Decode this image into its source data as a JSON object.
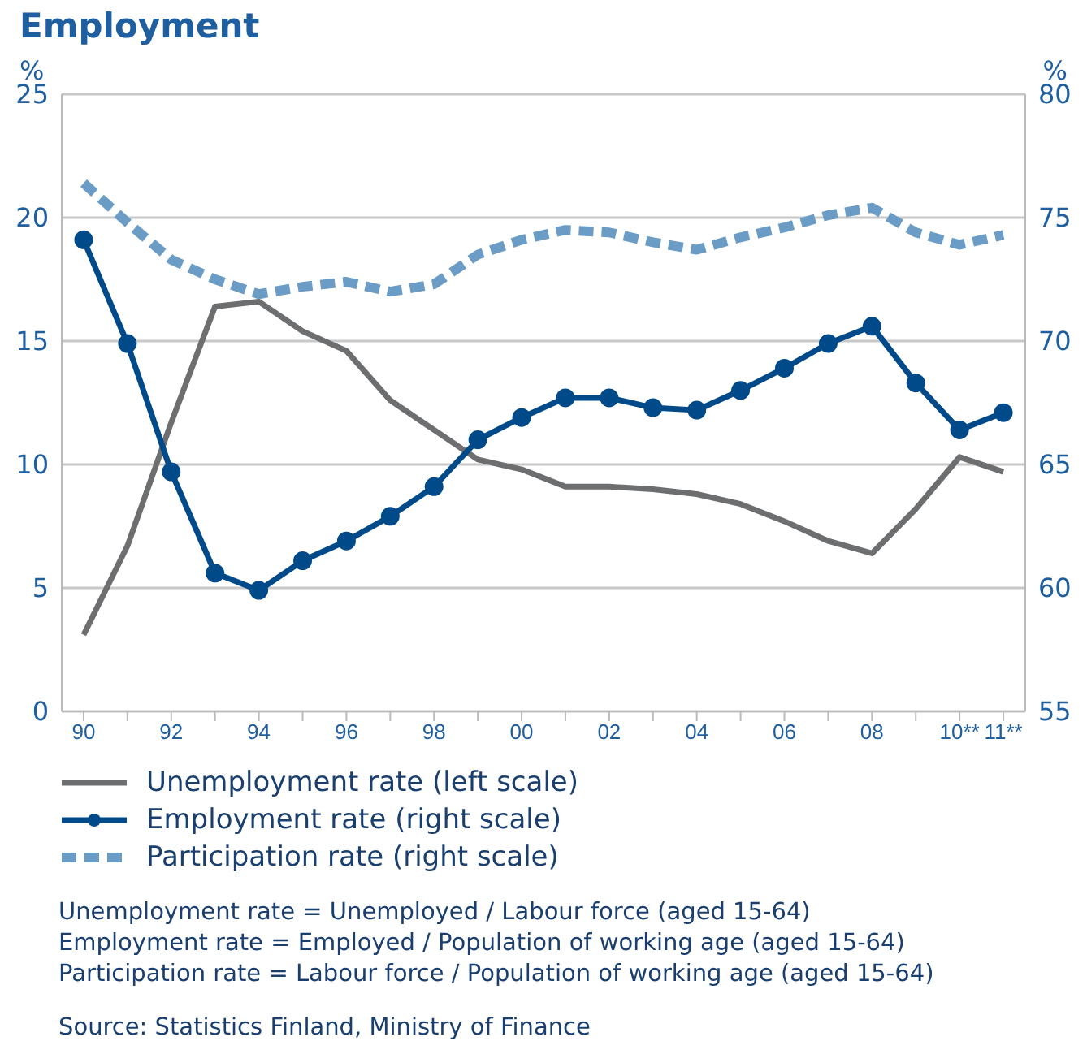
{
  "chart_data": {
    "type": "line",
    "title": "Employment",
    "ylabel": "%",
    "y2label": "%",
    "categories": [
      "90",
      null,
      "92",
      null,
      "94",
      null,
      "96",
      null,
      "98",
      null,
      "00",
      null,
      "02",
      null,
      "04",
      null,
      "06",
      null,
      "08",
      null,
      "10**",
      "11**"
    ],
    "series": [
      {
        "name": "Unemployment rate (left scale)",
        "color": "#6d6e70",
        "marker": "none",
        "line_style": "solid",
        "values": [
          3.1,
          6.7,
          11.7,
          16.4,
          16.6,
          15.4,
          14.6,
          12.6,
          11.4,
          10.2,
          9.8,
          9.1,
          9.1,
          9.0,
          8.8,
          8.4,
          7.7,
          6.9,
          6.4,
          8.2,
          10.3,
          9.7
        ]
      },
      {
        "name": "Employment rate (right scale)",
        "color": "#004a8a",
        "marker": "circle",
        "line_style": "solid",
        "axis": "y2",
        "values": [
          74.1,
          69.9,
          64.7,
          60.6,
          59.9,
          61.1,
          61.9,
          62.9,
          64.1,
          66.0,
          66.9,
          67.7,
          67.7,
          67.3,
          67.2,
          68.0,
          68.9,
          69.9,
          70.6,
          68.3,
          66.4,
          67.1
        ]
      },
      {
        "name": "Participation rate (right scale)",
        "color": "#6a9cc6",
        "marker": "none",
        "line_style": "dashed",
        "axis": "y2",
        "values": [
          76.4,
          74.8,
          73.3,
          72.5,
          71.9,
          72.2,
          72.4,
          72.0,
          72.3,
          73.5,
          74.1,
          74.5,
          74.4,
          74.0,
          73.7,
          74.2,
          74.6,
          75.1,
          75.4,
          74.4,
          73.9,
          74.3
        ]
      }
    ],
    "ylim": [
      0,
      25
    ],
    "yticks": [
      0,
      5,
      10,
      15,
      20,
      25
    ],
    "y2lim": [
      55,
      80
    ],
    "y2ticks": [
      55,
      60,
      65,
      70,
      75,
      80
    ],
    "grid": "y",
    "legend": "bottom",
    "annotations": [
      "Unemployment rate = Unemployed / Labour force (aged 15-64)",
      "Employment rate = Employed / Population of working age (aged 15-64)",
      "Participation rate = Labour force / Population of working age (aged 15-64)",
      "Source: Statistics Finland, Ministry of Finance"
    ]
  }
}
